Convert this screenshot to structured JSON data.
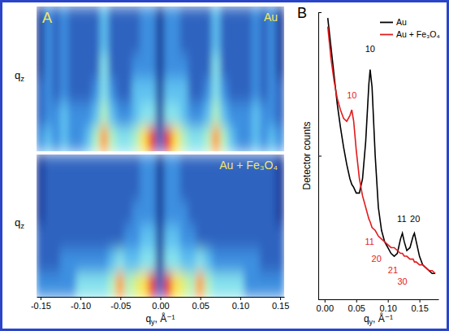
{
  "chart_data": [
    {
      "type": "heatmap",
      "label": "A",
      "xlabel": "qy, Å⁻¹",
      "xlim": [
        -0.155,
        0.155
      ],
      "xticks": [
        -0.15,
        {
          "value": -0.1,
          "label": "-0.10"
        },
        -0.05,
        {
          "value": 0,
          "label": "0.00"
        },
        0.05,
        {
          "value": 0.1,
          "label": "0.10"
        },
        0.15
      ],
      "zlim": [
        0,
        10
      ],
      "x": [
        -0.15,
        -0.14,
        -0.13,
        -0.12,
        -0.11,
        -0.1,
        -0.09,
        -0.08,
        -0.07,
        -0.06,
        -0.05,
        -0.04,
        -0.03,
        -0.02,
        -0.01,
        0,
        0.01,
        0.02,
        0.03,
        0.04,
        0.05,
        0.06,
        0.07,
        0.08,
        0.09,
        0.1,
        0.11,
        0.12,
        0.13,
        0.14,
        0.15
      ],
      "panels": [
        {
          "title": "Au",
          "ylabel": "qz",
          "z": [
            [
              1,
              3,
              2,
              3,
              2,
              2,
              2,
              2,
              4,
              2,
              2,
              2,
              2,
              3,
              3,
              1,
              3,
              3,
              2,
              2,
              2,
              2,
              4,
              2,
              2,
              2,
              2,
              3,
              2,
              3,
              1
            ],
            [
              1,
              3,
              2,
              3,
              2,
              2,
              2,
              2,
              4,
              2,
              2,
              2,
              2,
              3,
              3,
              1,
              3,
              3,
              2,
              2,
              2,
              2,
              4,
              2,
              2,
              2,
              2,
              3,
              2,
              3,
              1
            ],
            [
              1,
              3,
              2,
              3,
              2,
              2,
              2,
              2,
              5,
              2,
              2,
              2,
              3,
              3,
              3,
              1,
              3,
              3,
              3,
              2,
              2,
              2,
              5,
              2,
              2,
              2,
              2,
              3,
              2,
              3,
              1
            ],
            [
              2,
              3,
              2,
              3,
              2,
              2,
              2,
              3,
              5,
              3,
              2,
              2,
              4,
              4,
              4,
              1,
              4,
              4,
              4,
              2,
              2,
              3,
              5,
              3,
              2,
              2,
              2,
              3,
              2,
              3,
              2
            ],
            [
              2,
              3,
              3,
              4,
              3,
              3,
              3,
              4,
              6,
              4,
              3,
              3,
              4,
              5,
              5,
              1,
              5,
              5,
              4,
              3,
              3,
              4,
              6,
              4,
              3,
              3,
              3,
              4,
              3,
              3,
              2
            ],
            [
              3,
              4,
              3,
              4,
              3,
              3,
              4,
              6,
              9,
              6,
              5,
              5,
              6,
              8,
              10,
              2,
              10,
              8,
              6,
              5,
              5,
              6,
              9,
              6,
              4,
              3,
              3,
              4,
              3,
              4,
              3
            ]
          ]
        },
        {
          "title": "Au + Fe₃O₄",
          "ylabel": "qz",
          "z": [
            [
              1,
              2,
              2,
              2,
              2,
              2,
              2,
              2,
              2,
              2,
              2,
              2,
              2,
              3,
              3,
              1,
              3,
              3,
              2,
              2,
              2,
              2,
              2,
              2,
              2,
              2,
              2,
              2,
              2,
              2,
              1
            ],
            [
              1,
              2,
              2,
              2,
              2,
              2,
              2,
              2,
              2,
              2,
              2,
              2,
              2,
              3,
              3,
              1,
              3,
              3,
              2,
              2,
              2,
              2,
              2,
              2,
              2,
              2,
              2,
              2,
              2,
              2,
              1
            ],
            [
              1,
              2,
              2,
              2,
              2,
              2,
              2,
              2,
              2,
              2,
              2,
              2,
              3,
              3,
              3,
              1,
              3,
              3,
              3,
              2,
              2,
              2,
              2,
              2,
              2,
              2,
              2,
              2,
              2,
              2,
              1
            ],
            [
              2,
              2,
              2,
              2,
              2,
              2,
              2,
              2,
              2,
              2,
              2,
              3,
              3,
              4,
              4,
              1,
              4,
              4,
              3,
              3,
              2,
              2,
              2,
              2,
              2,
              2,
              2,
              2,
              2,
              2,
              2
            ],
            [
              2,
              2,
              2,
              3,
              3,
              3,
              3,
              3,
              3,
              4,
              5,
              4,
              4,
              5,
              5,
              1,
              5,
              5,
              4,
              4,
              5,
              4,
              3,
              3,
              3,
              3,
              3,
              3,
              2,
              2,
              2
            ],
            [
              3,
              3,
              3,
              3,
              3,
              5,
              5,
              5,
              5,
              6,
              9,
              6,
              7,
              8,
              10,
              2,
              10,
              8,
              7,
              6,
              9,
              6,
              5,
              5,
              5,
              5,
              3,
              3,
              3,
              3,
              3
            ]
          ]
        }
      ]
    },
    {
      "type": "line",
      "label": "B",
      "xlabel": "qy, Å⁻¹",
      "ylabel": "Detector counts",
      "xlim": [
        -0.01,
        0.18
      ],
      "xticks": [
        {
          "value": 0,
          "label": "0.00"
        },
        0.05,
        {
          "value": 0.1,
          "label": "0.10"
        },
        0.15
      ],
      "ylim": [
        0,
        100
      ],
      "yticks": [
        0,
        50,
        100
      ],
      "tick_labels": "x",
      "legend": "upper right",
      "x": [
        0.005,
        0.01,
        0.015,
        0.02,
        0.025,
        0.03,
        0.035,
        0.04,
        0.043,
        0.046,
        0.05,
        0.055,
        0.06,
        0.065,
        0.07,
        0.072,
        0.075,
        0.08,
        0.085,
        0.09,
        0.095,
        0.1,
        0.105,
        0.11,
        0.115,
        0.12,
        0.123,
        0.126,
        0.13,
        0.135,
        0.14,
        0.142,
        0.145,
        0.15,
        0.155,
        0.16,
        0.165,
        0.17,
        0.175
      ],
      "series": [
        {
          "name": "Au",
          "color": "#000000",
          "values": [
            98,
            88,
            78,
            68,
            60,
            53,
            47,
            42,
            40,
            39,
            37,
            37,
            42,
            55,
            75,
            80,
            74,
            50,
            32,
            24,
            20,
            18,
            16,
            15,
            16,
            21,
            23,
            20,
            17,
            18,
            22,
            23,
            20,
            15,
            12,
            11,
            10,
            9,
            9
          ]
        },
        {
          "name": "Au + Fe₃O₄",
          "color": "#e41a1c",
          "values": [
            95,
            84,
            76,
            70,
            66,
            63,
            62,
            64,
            66,
            62,
            52,
            42,
            36,
            32,
            28,
            27,
            25,
            24,
            22,
            21,
            20,
            19,
            18,
            18,
            17,
            16,
            16,
            15,
            15,
            14,
            14,
            13,
            13,
            12,
            12,
            11,
            10,
            10,
            9
          ]
        }
      ],
      "annotations": [
        {
          "text": "10",
          "x": 0.072,
          "y": 86,
          "color": "#000000"
        },
        {
          "text": "11",
          "x": 0.122,
          "y": 27,
          "color": "#000000"
        },
        {
          "text": "20",
          "x": 0.143,
          "y": 27,
          "color": "#000000"
        },
        {
          "text": "10",
          "x": 0.043,
          "y": 70,
          "color": "#e41a1c"
        },
        {
          "text": "11",
          "x": 0.071,
          "y": 19,
          "color": "#e41a1c"
        },
        {
          "text": "20",
          "x": 0.082,
          "y": 13,
          "color": "#e41a1c"
        },
        {
          "text": "21",
          "x": 0.108,
          "y": 9,
          "color": "#e41a1c"
        },
        {
          "text": "30",
          "x": 0.123,
          "y": 5,
          "color": "#e41a1c"
        }
      ]
    }
  ]
}
